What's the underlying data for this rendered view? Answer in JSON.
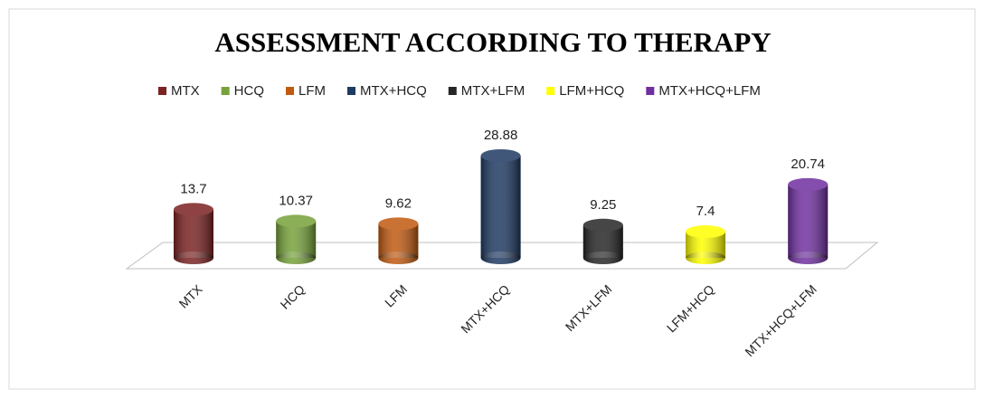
{
  "chart_data": {
    "type": "bar3d",
    "title": "ASSESSMENT ACCORDING TO THERAPY",
    "categories": [
      "MTX",
      "HCQ",
      "LFM",
      "MTX+HCQ",
      "MTX+LFM",
      "LFM+HCQ",
      "MTX+HCQ+LFM"
    ],
    "values": [
      13.7,
      10.37,
      9.62,
      28.88,
      9.25,
      7.4,
      20.74
    ],
    "colors": [
      "#7b2222",
      "#76a23a",
      "#c05a10",
      "#1f3a63",
      "#262626",
      "#ffff00",
      "#7030a0"
    ],
    "legend": "top"
  }
}
